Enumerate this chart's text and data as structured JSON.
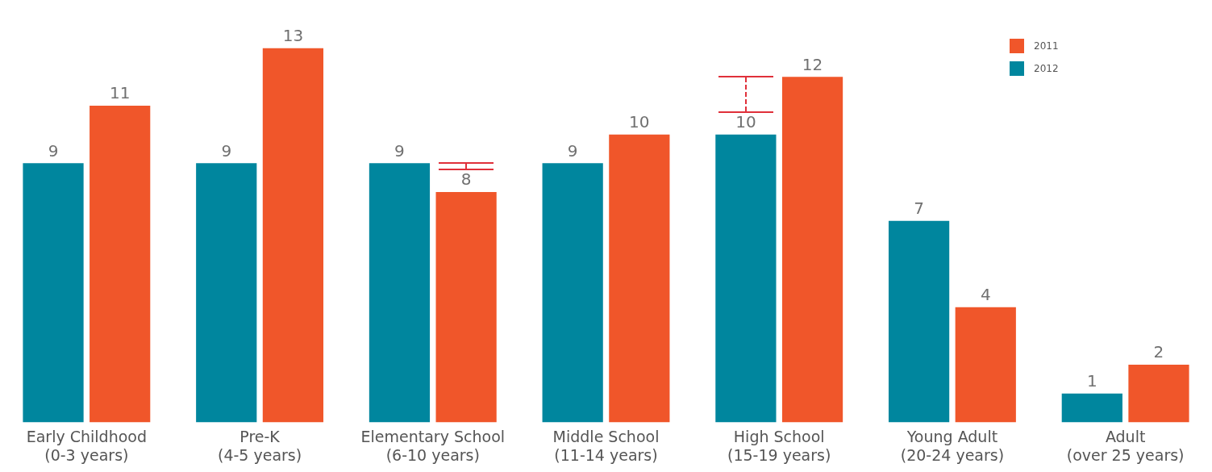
{
  "chart_data": {
    "type": "bar",
    "categories": [
      "Early Childhood\n(0-3 years)",
      "Pre-K\n(4-5 years)",
      "Elementary School\n(6-10 years)",
      "Middle School\n(11-14 years)",
      "High School\n(15-19 years)",
      "Young Adult\n(20-24 years)",
      "Adult\n(over 25 years)"
    ],
    "series": [
      {
        "name": "2012",
        "color": "#00869e",
        "values": [
          9,
          9,
          9,
          9,
          10,
          7,
          1
        ]
      },
      {
        "name": "2011",
        "color": "#f0562a",
        "values": [
          11,
          13,
          8,
          10,
          12,
          4,
          2
        ]
      }
    ],
    "tick_labels": "x",
    "data_labels": true,
    "legend": "top right",
    "grid": false
  }
}
